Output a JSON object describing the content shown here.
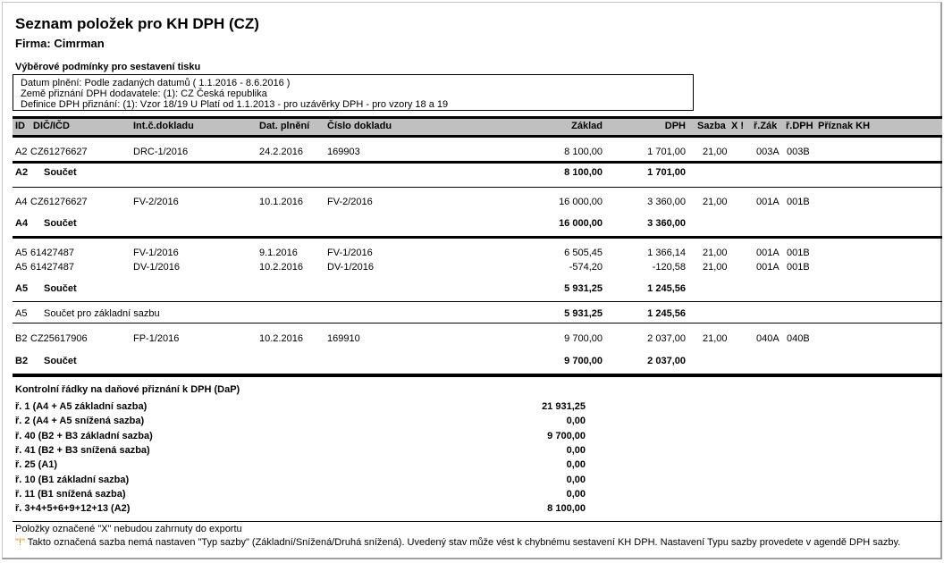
{
  "title": "Seznam položek pro KH DPH (CZ)",
  "firm": "Firma: Cimrman",
  "conditions": {
    "heading": "Výběrové podmínky pro sestavení tisku",
    "lines": [
      "Datum plnění: Podle zadaných datumů ( 1.1.2016 - 8.6.2016 )",
      "Země přiznání DPH dodavatele: (1): CZ Česká republika",
      "Definice DPH přiznání: (1): Vzor 18/19 U Platí od 1.1.2013 - pro uzávěrky DPH  - pro vzory 18 a 19"
    ]
  },
  "columns": {
    "id": "ID",
    "dic": "DIČ/IČD",
    "int": "Int.č.dokladu",
    "date": "Dat. plnění",
    "doc": "Číslo dokladu",
    "base": "Základ",
    "vat": "DPH",
    "rate": "Sazba",
    "x": "X !",
    "rz": "ř.Zák",
    "rd": "ř.DPH",
    "flag": "Příznak KH"
  },
  "rows": [
    {
      "id": "A2",
      "dic": "CZ61276627",
      "int": "DRC-1/2016",
      "date": "24.2.2016",
      "doc": "169903",
      "base": "8 100,00",
      "vat": "1 701,00",
      "rate": "21,00",
      "rz": "003A",
      "rd": "003B"
    },
    {
      "id": "A2",
      "label": "Součet",
      "base": "8 100,00",
      "vat": "1 701,00"
    },
    {
      "id": "A4",
      "dic": "CZ61276627",
      "int": "FV-2/2016",
      "date": "10.1.2016",
      "doc": "FV-2/2016",
      "base": "16 000,00",
      "vat": "3 360,00",
      "rate": "21,00",
      "rz": "001A",
      "rd": "001B"
    },
    {
      "id": "A4",
      "label": "Součet",
      "base": "16 000,00",
      "vat": "3 360,00"
    },
    {
      "id": "A5",
      "dic": "61427487",
      "int": "FV-1/2016",
      "date": "9.1.2016",
      "doc": "FV-1/2016",
      "base": "6 505,45",
      "vat": "1 366,14",
      "rate": "21,00",
      "rz": "001A",
      "rd": "001B"
    },
    {
      "id": "A5",
      "dic": "61427487",
      "int": "DV-1/2016",
      "date": "10.2.2016",
      "doc": "DV-1/2016",
      "base": "-574,20",
      "vat": "-120,58",
      "rate": "21,00",
      "rz": "001A",
      "rd": "001B"
    },
    {
      "id": "A5",
      "label": "Součet",
      "base": "5 931,25",
      "vat": "1 245,56"
    },
    {
      "id": "A5",
      "label": "Součet pro základní sazbu",
      "base": "5 931,25",
      "vat": "1 245,56"
    },
    {
      "id": "B2",
      "dic": "CZ25617906",
      "int": "FP-1/2016",
      "date": "10.2.2016",
      "doc": "169910",
      "base": "9 700,00",
      "vat": "2 037,00",
      "rate": "21,00",
      "rz": "040A",
      "rd": "040B"
    },
    {
      "id": "B2",
      "label": "Součet",
      "base": "9 700,00",
      "vat": "2 037,00"
    }
  ],
  "control": {
    "heading": "Kontrolní řádky na daňové přiznání k DPH (DaP)",
    "rows": [
      {
        "label": "ř. 1 (A4 + A5 základní sazba)",
        "value": "21 931,25"
      },
      {
        "label": "ř. 2 (A4 + A5 snížená sazba)",
        "value": "0,00"
      },
      {
        "label": "ř. 40 (B2 + B3 základní sazba)",
        "value": "9 700,00"
      },
      {
        "label": "ř. 41 (B2 + B3 snížená sazba)",
        "value": "0,00"
      },
      {
        "label": "ř. 25 (A1)",
        "value": "0,00"
      },
      {
        "label": "ř. 10 (B1 základní sazba)",
        "value": "0,00"
      },
      {
        "label": "ř. 11 (B1 snížená sazba)",
        "value": "0,00"
      },
      {
        "label": "ř. 3+4+5+6+9+12+13 (A2)",
        "value": "8 100,00"
      }
    ]
  },
  "footer": {
    "note1": "Položky označené \"X\" nebudou zahrnuty do exportu",
    "mark": "\"!\"",
    "note2": " Takto označená sazba nemá nastaven \"Typ sazby\" (Základní/Snížená/Druhá snížená). Uvedený stav může vést k chybnému sestavení KH DPH. Nastavení Typu sazby provedete v agendě DPH sazby.",
    "mark_color": "#cc8800"
  }
}
